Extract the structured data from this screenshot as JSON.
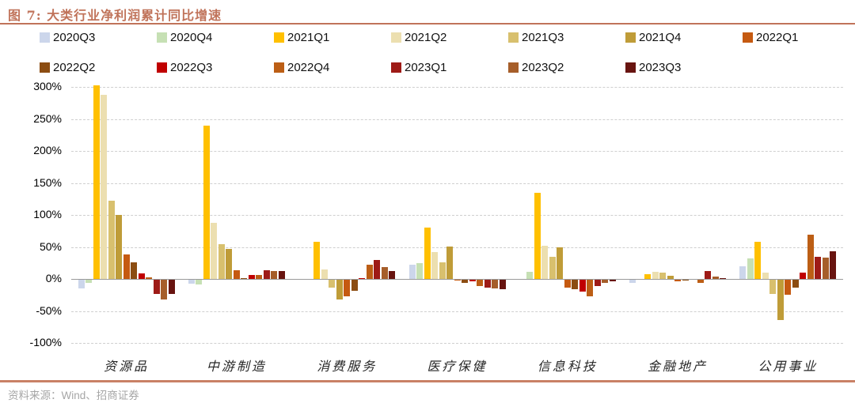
{
  "figure": {
    "title": "图 7:  大类行业净利润累计同比增速",
    "source_note": "资料来源：Wind、招商证券"
  },
  "chart_data": {
    "type": "bar",
    "title": "大类行业净利润累计同比增速",
    "xlabel": "",
    "ylabel": "",
    "unit": "%",
    "grid": "horizontal-dashed",
    "legend_position": "top",
    "categories": [
      "资源品",
      "中游制造",
      "消费服务",
      "医疗保健",
      "信息科技",
      "金融地产",
      "公用事业"
    ],
    "y_axis": {
      "tick_labels": [
        "300%",
        "250%",
        "200%",
        "150%",
        "100%",
        "50%",
        "0%",
        "-50%",
        "-100%"
      ],
      "tick_values": [
        300,
        250,
        200,
        150,
        100,
        50,
        0,
        -50,
        -100
      ],
      "min": -100,
      "max": 300
    },
    "series": [
      {
        "name": "2020Q3",
        "color": "#ccd6eb",
        "values": [
          -13,
          -6,
          0,
          22,
          0,
          -5,
          20
        ]
      },
      {
        "name": "2020Q4",
        "color": "#c6e0b4",
        "values": [
          -4,
          -7,
          0,
          25,
          12,
          0,
          33
        ]
      },
      {
        "name": "2021Q1",
        "color": "#ffc000",
        "values": [
          303,
          240,
          58,
          80,
          135,
          8,
          58
        ]
      },
      {
        "name": "2021Q2",
        "color": "#ecdfb0",
        "values": [
          288,
          88,
          15,
          42,
          52,
          12,
          10
        ]
      },
      {
        "name": "2021Q3",
        "color": "#d8c06e",
        "values": [
          122,
          55,
          -12,
          26,
          35,
          10,
          -22
        ]
      },
      {
        "name": "2021Q4",
        "color": "#bf9c38",
        "values": [
          100,
          47,
          -30,
          51,
          50,
          5,
          -62
        ]
      },
      {
        "name": "2022Q1",
        "color": "#c55a11",
        "values": [
          38,
          14,
          -25,
          -1,
          -12,
          -2,
          -23
        ]
      },
      {
        "name": "2022Q2",
        "color": "#8c4d12",
        "values": [
          26,
          2,
          -17,
          -5,
          -15,
          -1,
          -12
        ]
      },
      {
        "name": "2022Q3",
        "color": "#c00000",
        "values": [
          9,
          6,
          2,
          -2,
          -18,
          0,
          10
        ]
      },
      {
        "name": "2022Q4",
        "color": "#bc5e15",
        "values": [
          3,
          6,
          22,
          -10,
          -25,
          -4,
          70
        ]
      },
      {
        "name": "2023Q1",
        "color": "#9e1b17",
        "values": [
          -22,
          14,
          30,
          -12,
          -10,
          13,
          35
        ]
      },
      {
        "name": "2023Q2",
        "color": "#a65e2a",
        "values": [
          -30,
          13,
          19,
          -13,
          -4,
          4,
          34
        ]
      },
      {
        "name": "2023Q3",
        "color": "#681410",
        "values": [
          -22,
          13,
          13,
          -15,
          -2,
          2,
          44
        ]
      }
    ],
    "legend_rows": [
      7,
      6
    ]
  }
}
